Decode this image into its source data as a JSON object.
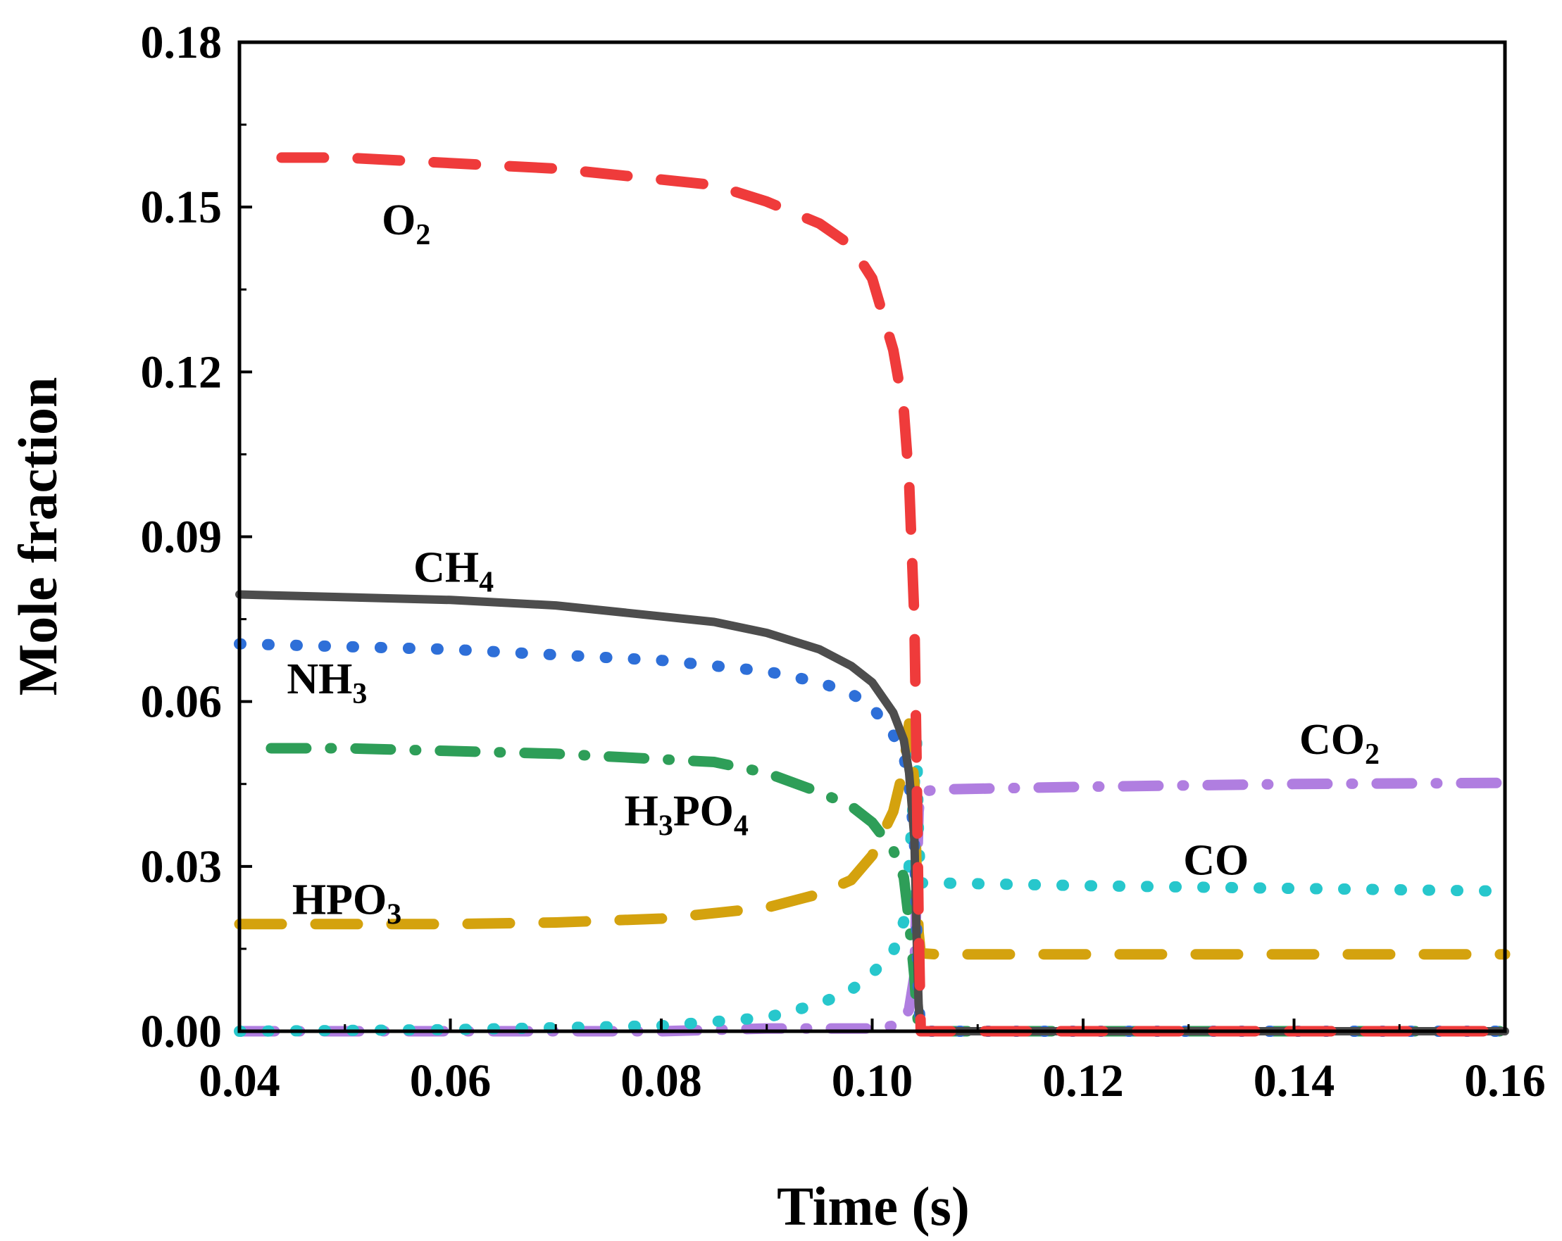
{
  "chart_data": {
    "type": "line",
    "xlabel": "Time (s)",
    "ylabel": "Mole fraction",
    "xlim": [
      0.04,
      0.16
    ],
    "ylim": [
      0.0,
      0.18
    ],
    "xticks": [
      "0.04",
      "0.06",
      "0.08",
      "0.10",
      "0.12",
      "0.14",
      "0.16"
    ],
    "yticks": [
      "0.00",
      "0.03",
      "0.06",
      "0.09",
      "0.12",
      "0.15",
      "0.18"
    ],
    "series": [
      {
        "name": "O2",
        "label_main": "O",
        "label_sub": "2",
        "color": "#ef3b3b",
        "dash": "dash",
        "x": [
          0.044,
          0.05,
          0.06,
          0.07,
          0.08,
          0.085,
          0.09,
          0.095,
          0.098,
          0.1,
          0.102,
          0.103,
          0.1035,
          0.104,
          0.1042,
          0.1044,
          0.1046,
          0.106,
          0.12,
          0.14,
          0.16
        ],
        "y": [
          0.159,
          0.159,
          0.158,
          0.157,
          0.155,
          0.154,
          0.151,
          0.147,
          0.143,
          0.137,
          0.124,
          0.113,
          0.1,
          0.075,
          0.05,
          0.02,
          0.0,
          0.0,
          0.0,
          0.0,
          0.0
        ]
      },
      {
        "name": "CH4",
        "label_main": "CH",
        "label_sub": "4",
        "color": "#4d4d4d",
        "dash": "solid",
        "x": [
          0.04,
          0.05,
          0.06,
          0.07,
          0.08,
          0.085,
          0.09,
          0.095,
          0.098,
          0.1,
          0.102,
          0.103,
          0.1035,
          0.104,
          0.1042,
          0.1044,
          0.1046,
          0.106,
          0.12,
          0.14,
          0.16
        ],
        "y": [
          0.0795,
          0.079,
          0.0785,
          0.0775,
          0.0755,
          0.0745,
          0.0725,
          0.0695,
          0.0665,
          0.0635,
          0.058,
          0.053,
          0.047,
          0.035,
          0.018,
          0.005,
          0.0,
          0.0,
          0.0,
          0.0,
          0.0
        ]
      },
      {
        "name": "NH3",
        "label_main": "NH",
        "label_sub": "3",
        "color": "#2e6fd8",
        "dash": "dot",
        "x": [
          0.04,
          0.05,
          0.06,
          0.07,
          0.08,
          0.085,
          0.09,
          0.095,
          0.098,
          0.1,
          0.102,
          0.103,
          0.1035,
          0.104,
          0.1042,
          0.1044,
          0.1046,
          0.106,
          0.12,
          0.14,
          0.16
        ],
        "y": [
          0.0705,
          0.07,
          0.0695,
          0.0685,
          0.0675,
          0.0665,
          0.0655,
          0.0635,
          0.0615,
          0.059,
          0.054,
          0.05,
          0.045,
          0.035,
          0.02,
          0.006,
          0.0,
          0.0,
          0.0,
          0.0,
          0.0
        ]
      },
      {
        "name": "H3PO4",
        "label_main": "H",
        "label_sub": "3",
        "label_main2": "PO",
        "label_sub2": "4",
        "color": "#2e9e58",
        "dash": "dashdot",
        "x": [
          0.043,
          0.05,
          0.06,
          0.07,
          0.08,
          0.085,
          0.09,
          0.095,
          0.098,
          0.1,
          0.102,
          0.103,
          0.1035,
          0.104,
          0.1042,
          0.1044,
          0.1046,
          0.106,
          0.12,
          0.14,
          0.16
        ],
        "y": [
          0.0515,
          0.0515,
          0.051,
          0.0505,
          0.0495,
          0.049,
          0.047,
          0.0435,
          0.041,
          0.038,
          0.033,
          0.028,
          0.02,
          0.01,
          0.004,
          0.001,
          0.0,
          0.0,
          0.0,
          0.0,
          0.0
        ]
      },
      {
        "name": "HPO3",
        "label_main": "HPO",
        "label_sub": "3",
        "color": "#d4a20e",
        "dash": "dash",
        "x": [
          0.04,
          0.05,
          0.06,
          0.07,
          0.08,
          0.09,
          0.095,
          0.098,
          0.1,
          0.102,
          0.103,
          0.1035,
          0.104,
          0.1042,
          0.1044,
          0.1046,
          0.106,
          0.12,
          0.14,
          0.16
        ],
        "y": [
          0.0195,
          0.0195,
          0.0195,
          0.0198,
          0.0205,
          0.0225,
          0.025,
          0.0275,
          0.032,
          0.04,
          0.048,
          0.056,
          0.045,
          0.03,
          0.018,
          0.0142,
          0.014,
          0.014,
          0.014,
          0.014
        ]
      },
      {
        "name": "CO",
        "label_main": "CO",
        "label_sub": "",
        "color": "#27c7cc",
        "dash": "dot",
        "x": [
          0.04,
          0.06,
          0.08,
          0.09,
          0.095,
          0.098,
          0.1,
          0.102,
          0.103,
          0.1035,
          0.104,
          0.1042,
          0.1044,
          0.1046,
          0.106,
          0.12,
          0.14,
          0.16
        ],
        "y": [
          0.0,
          0.0003,
          0.001,
          0.0025,
          0.005,
          0.0075,
          0.0105,
          0.0145,
          0.02,
          0.03,
          0.045,
          0.054,
          0.035,
          0.027,
          0.027,
          0.0265,
          0.026,
          0.0255
        ]
      },
      {
        "name": "CO2",
        "label_main": "CO",
        "label_sub": "2",
        "color": "#b07ee0",
        "dash": "dashdot",
        "x": [
          0.04,
          0.06,
          0.08,
          0.09,
          0.1,
          0.102,
          0.103,
          0.1035,
          0.104,
          0.1042,
          0.1044,
          0.1046,
          0.106,
          0.12,
          0.14,
          0.16
        ],
        "y": [
          0.0,
          0.0,
          0.0,
          0.0005,
          0.0005,
          0.001,
          0.002,
          0.004,
          0.01,
          0.025,
          0.04,
          0.0435,
          0.044,
          0.0445,
          0.045,
          0.0452
        ]
      }
    ]
  }
}
